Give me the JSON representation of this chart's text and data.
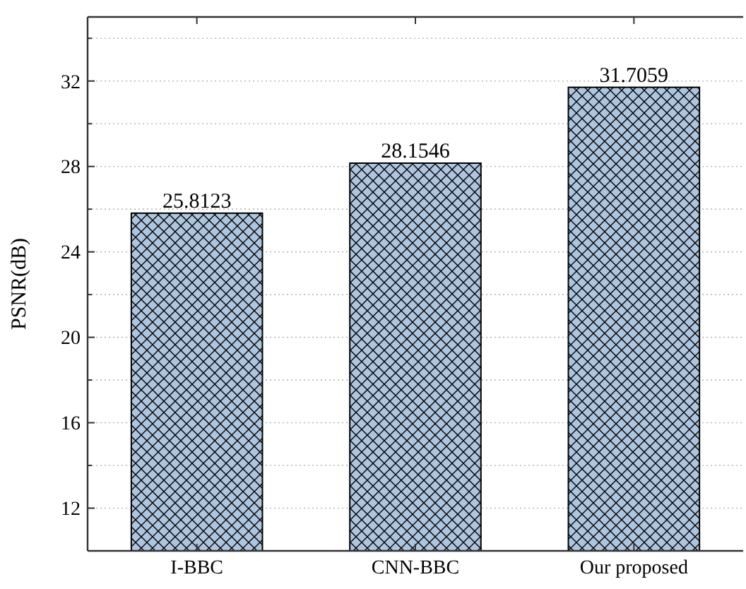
{
  "chart_data": {
    "type": "bar",
    "ylabel": "PSNR(dB)",
    "categories": [
      "I-BBC",
      "CNN-BBC",
      "Our proposed"
    ],
    "values": [
      25.8123,
      28.1546,
      31.7059
    ],
    "color": "#adc6e0",
    "data_labels": true,
    "ylim": [
      10,
      35
    ],
    "yticks": [
      {
        "value": 10,
        "label": null
      },
      12,
      {
        "value": 14,
        "label": null
      },
      16,
      {
        "value": 18,
        "label": null
      },
      20,
      {
        "value": 22,
        "label": null
      },
      24,
      {
        "value": 26,
        "label": null
      },
      28,
      {
        "value": 30,
        "label": null
      },
      32,
      {
        "value": 34,
        "label": null
      }
    ],
    "grid": "y"
  }
}
